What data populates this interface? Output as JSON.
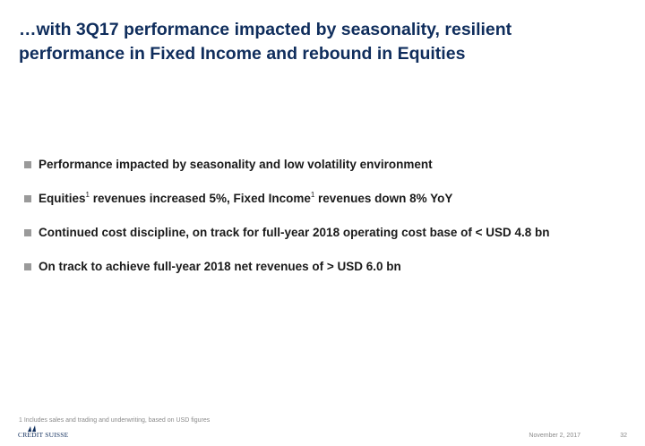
{
  "slide": {
    "title": "…with 3Q17 performance impacted by seasonality, resilient performance in Fixed Income and rebound in Equities"
  },
  "bullets": [
    {
      "text": "Performance impacted by seasonality and low volatility environment"
    },
    {
      "part1": "Equities",
      "sup1": "1",
      "part2": " revenues increased 5%, Fixed Income",
      "sup2": "1",
      "part3": " revenues down 8% YoY"
    },
    {
      "text": "Continued cost discipline, on track for full-year 2018 operating cost base of < USD 4.8 bn"
    },
    {
      "text": "On track to achieve full-year 2018 net revenues of > USD 6.0 bn"
    }
  ],
  "footnote": "1 Includes sales and trading and underwriting, based on USD figures",
  "footer": {
    "logo_text": "CREDIT SUISSE",
    "date": "November 2, 2017",
    "page_number": "32"
  },
  "colors": {
    "title": "#0f2d5c",
    "bullet_marker": "#9a9a9a",
    "footer_text": "#8a8a8a"
  }
}
